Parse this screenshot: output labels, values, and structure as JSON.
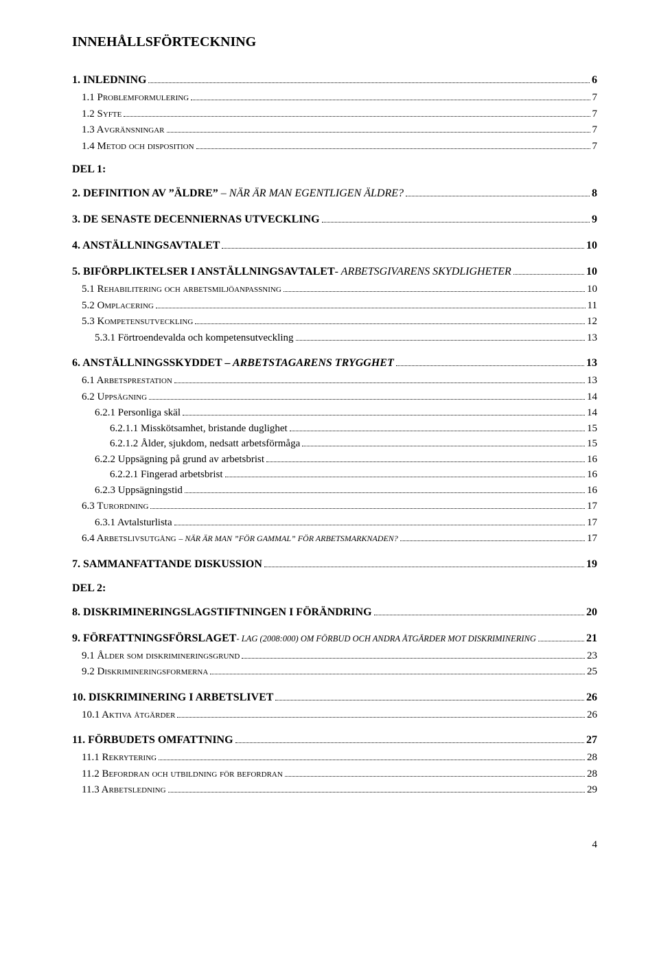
{
  "title": "INNEHÅLLSFÖRTECKNING",
  "page_number": "4",
  "entries": [
    {
      "level": 0,
      "label": "1. INLEDNING",
      "page": "6"
    },
    {
      "level": 1,
      "label": "1.1 Problemformulering",
      "smallcaps": true,
      "page": "7"
    },
    {
      "level": 1,
      "label": "1.2 Syfte",
      "smallcaps": true,
      "page": "7"
    },
    {
      "level": 1,
      "label": "1.3 Avgränsningar",
      "smallcaps": true,
      "page": "7"
    },
    {
      "level": 1,
      "label": "1.4 Metod och disposition",
      "smallcaps": true,
      "page": "7"
    },
    {
      "section": "DEL 1:"
    },
    {
      "level": 0,
      "label": "2. DEFINITION AV ”ÄLDRE” ",
      "trail": "– NÄR ÄR MAN EGENTLIGEN ÄLDRE?",
      "trail_style": "italic",
      "page": "8"
    },
    {
      "level": 0,
      "label": "3. DE SENASTE DECENNIERNAS UTVECKLING",
      "page": "9"
    },
    {
      "level": 0,
      "label": "4. ANSTÄLLNINGSAVTALET",
      "page": "10"
    },
    {
      "level": 0,
      "label": "5. BIFÖRPLIKTELSER I ANSTÄLLNINGSAVTALET",
      "trail": "- ARBETSGIVARENS SKYDLIGHETER",
      "trail_style": "italic",
      "page": "10"
    },
    {
      "level": 1,
      "label": "5.1 Rehabilitering och arbetsmiljöanpassning",
      "smallcaps": true,
      "page": "10"
    },
    {
      "level": 1,
      "label": "5.2 Omplacering",
      "smallcaps": true,
      "page": "11"
    },
    {
      "level": 1,
      "label": "5.3 Kompetensutveckling",
      "smallcaps": true,
      "page": "12"
    },
    {
      "level": 2,
      "label": "5.3.1 Förtroendevalda och kompetensutveckling",
      "page": "13"
    },
    {
      "level": 0,
      "label": "6. ANSTÄLLNINGSSKYDDET ",
      "trail": "– ARBETSTAGARENS TRYGGHET",
      "trail_style": "bolditalic",
      "page": "13"
    },
    {
      "level": 1,
      "label": "6.1 Arbetsprestation",
      "smallcaps": true,
      "page": "13"
    },
    {
      "level": 1,
      "label": "6.2 Uppsägning",
      "smallcaps": true,
      "page": "14"
    },
    {
      "level": 2,
      "label": "6.2.1 Personliga skäl",
      "page": "14"
    },
    {
      "level": 3,
      "label": "6.2.1.1 Misskötsamhet, bristande duglighet",
      "page": "15"
    },
    {
      "level": 3,
      "label": "6.2.1.2 Ålder, sjukdom, nedsatt arbetsförmåga",
      "page": "15"
    },
    {
      "level": 2,
      "label": "6.2.2 Uppsägning på grund av arbetsbrist",
      "page": "16"
    },
    {
      "level": 3,
      "label": "6.2.2.1 Fingerad arbetsbrist",
      "page": "16"
    },
    {
      "level": 2,
      "label": "6.2.3 Uppsägningstid",
      "page": "16"
    },
    {
      "level": 1,
      "label": "6.3 Turordning",
      "smallcaps": true,
      "page": "17"
    },
    {
      "level": 2,
      "label": "6.3.1 Avtalsturlista",
      "page": "17"
    },
    {
      "level": 1,
      "label": "6.4 Arbetslivsutgång ",
      "smallcaps": true,
      "trail": "– NÄR ÄR MAN ”FÖR GAMMAL” FÖR ARBETSMARKNADEN?",
      "trail_style": "small",
      "page": "17"
    },
    {
      "level": 0,
      "label": "7. SAMMANFATTANDE DISKUSSION",
      "page": "19"
    },
    {
      "section": "DEL 2:"
    },
    {
      "level": 0,
      "label": "8. DISKRIMINERINGSLAGSTIFTNINGEN I FÖRÄNDRING",
      "page": "20"
    },
    {
      "level": 0,
      "label": "9. FÖRFATTNINGSFÖRSLAGET",
      "trail": "- LAG (2008:000) OM FÖRBUD OCH ANDRA ÅTGÄRDER MOT DISKRIMINERING",
      "trail_style": "italic-small",
      "page": "21"
    },
    {
      "level": 1,
      "label": "9.1 Ålder som diskrimineringsgrund",
      "smallcaps": true,
      "page": "23"
    },
    {
      "level": 1,
      "label": "9.2 Diskrimineringsformerna",
      "smallcaps": true,
      "page": "25"
    },
    {
      "level": 0,
      "label": "10. DISKRIMINERING I ARBETSLIVET",
      "page": "26"
    },
    {
      "level": 1,
      "label": "10.1 Aktiva åtgärder",
      "smallcaps": true,
      "page": "26"
    },
    {
      "level": 0,
      "label": "11. FÖRBUDETS OMFATTNING",
      "page": "27"
    },
    {
      "level": 1,
      "label": "11.1 Rekrytering",
      "smallcaps": true,
      "page": "28"
    },
    {
      "level": 1,
      "label": "11.2 Befordran och utbildning för befordran",
      "smallcaps": true,
      "page": "28"
    },
    {
      "level": 1,
      "label": "11.3 Arbetsledning",
      "smallcaps": true,
      "page": "29"
    }
  ]
}
